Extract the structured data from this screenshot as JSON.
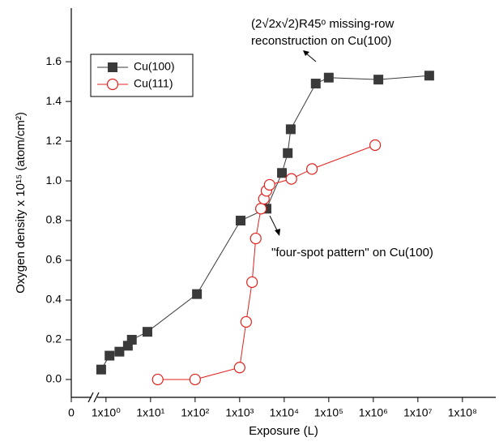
{
  "chart_data": {
    "type": "line",
    "xlabel": "Exposure (L)",
    "ylabel": "Oxygen density x 10¹⁵ (atom/cm²)",
    "xscale": "log",
    "axis_break": true,
    "xlim": [
      0,
      560000000
    ],
    "ylim": [
      -0.09,
      1.87
    ],
    "xticks": [
      {
        "value": 0,
        "label": "0"
      },
      {
        "value": 1,
        "label": "1x10⁰"
      },
      {
        "value": 10,
        "label": "1x10¹"
      },
      {
        "value": 100,
        "label": "1x10²"
      },
      {
        "value": 1000,
        "label": "1x10³"
      },
      {
        "value": 10000,
        "label": "1x10⁴"
      },
      {
        "value": 100000,
        "label": "1x10⁵"
      },
      {
        "value": 1000000,
        "label": "1x10⁶"
      },
      {
        "value": 10000000,
        "label": "1x10⁷"
      },
      {
        "value": 100000000,
        "label": "1x10⁸"
      }
    ],
    "yticks": [
      {
        "value": 0,
        "label": "0.0"
      },
      0.2,
      0.4,
      0.6,
      0.8,
      {
        "value": 1,
        "label": "1.0"
      },
      1.2,
      1.4,
      1.6
    ],
    "legend": "top-left",
    "series": [
      {
        "name": "Cu(100)",
        "color": "#3a3a3a",
        "marker": "square",
        "x": [
          0.78,
          1.2,
          2.0,
          3.1,
          3.8,
          8.5,
          110,
          1050,
          4000,
          8900,
          12000,
          14000,
          51000,
          100000,
          1300000,
          18000000
        ],
        "values": [
          0.05,
          0.12,
          0.14,
          0.17,
          0.2,
          0.24,
          0.43,
          0.8,
          0.86,
          1.04,
          1.14,
          1.26,
          1.49,
          1.52,
          1.51,
          1.53
        ]
      },
      {
        "name": "Cu(111)",
        "color": "#e0211c",
        "marker": "open-circle",
        "x": [
          14.5,
          100,
          1000,
          1400,
          1900,
          2300,
          3000,
          3500,
          4000,
          4700,
          14500,
          42000,
          1100000
        ],
        "values": [
          0,
          0,
          0.06,
          0.29,
          0.49,
          0.71,
          0.86,
          0.91,
          0.95,
          0.98,
          1.01,
          1.06,
          1.18
        ]
      }
    ],
    "annotations": [
      "(2√2x√2)R45ᵒ missing-row",
      "reconstruction on Cu(100)",
      "\"four-spot pattern\" on Cu(100)"
    ]
  }
}
